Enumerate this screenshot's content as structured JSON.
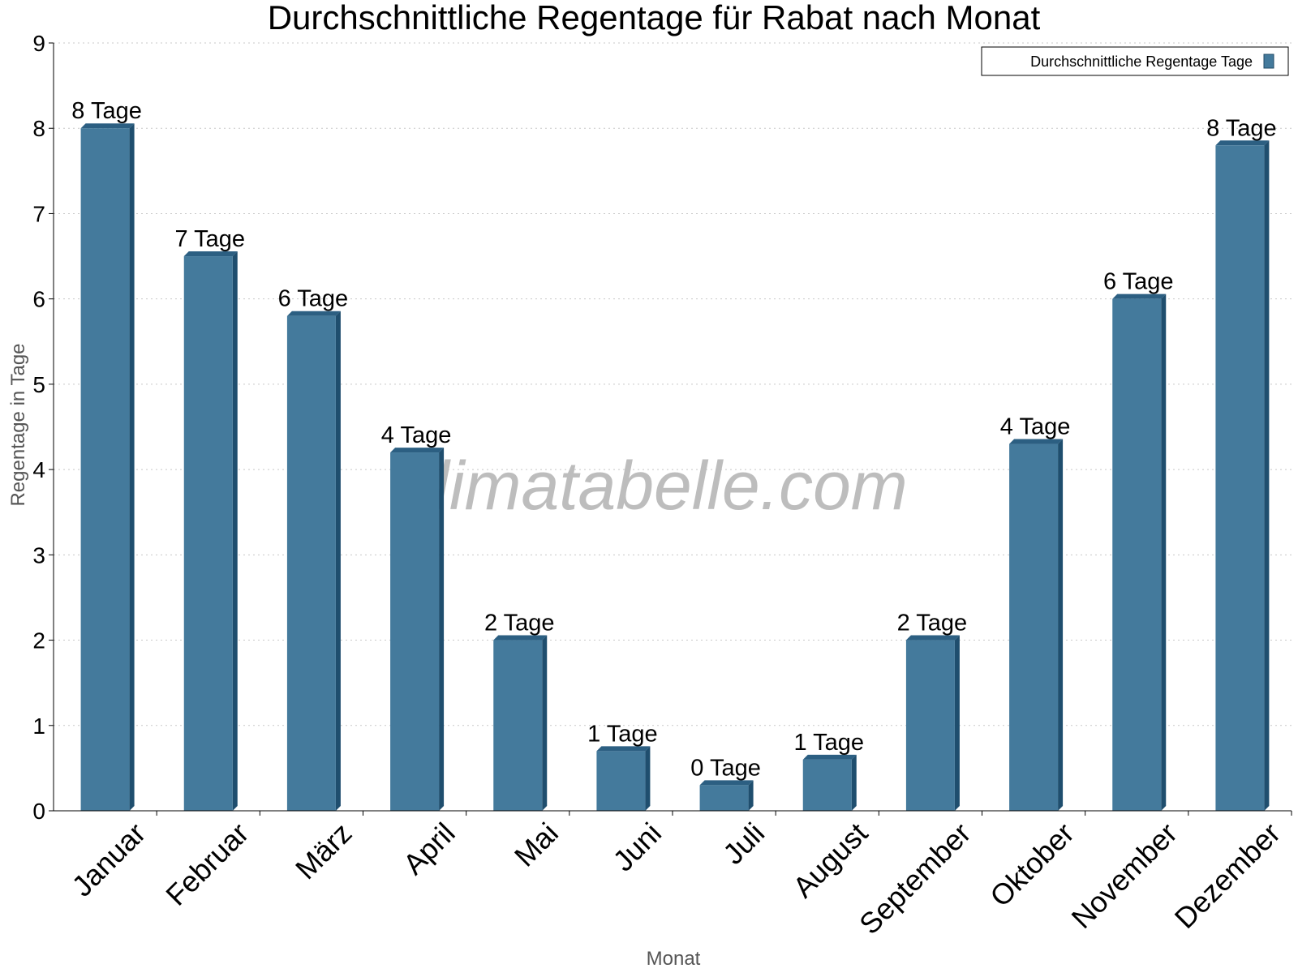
{
  "chart_data": {
    "type": "bar",
    "title": "Durchschnittliche Regentage für Rabat nach Monat",
    "xlabel": "Monat",
    "ylabel": "Regentage in Tage",
    "ylim": [
      0,
      9
    ],
    "yticks": [
      0,
      1,
      2,
      3,
      4,
      5,
      6,
      7,
      8,
      9
    ],
    "grid": true,
    "legend_position": "top-right",
    "categories": [
      "Januar",
      "Februar",
      "März",
      "April",
      "Mai",
      "Juni",
      "Juli",
      "August",
      "September",
      "Oktober",
      "November",
      "Dezember"
    ],
    "series": [
      {
        "name": "Durchschnittliche Regentage Tage",
        "color": "#447a9c",
        "values": [
          8.0,
          6.5,
          5.8,
          4.2,
          2.0,
          0.7,
          0.3,
          0.6,
          2.0,
          4.3,
          6.0,
          7.8
        ],
        "labels": [
          "8 Tage",
          "7 Tage",
          "6 Tage",
          "4 Tage",
          "2 Tage",
          "1 Tage",
          "0 Tage",
          "1 Tage",
          "2 Tage",
          "4 Tage",
          "6 Tage",
          "8 Tage"
        ]
      }
    ]
  },
  "watermark": "klimatabelle.com"
}
